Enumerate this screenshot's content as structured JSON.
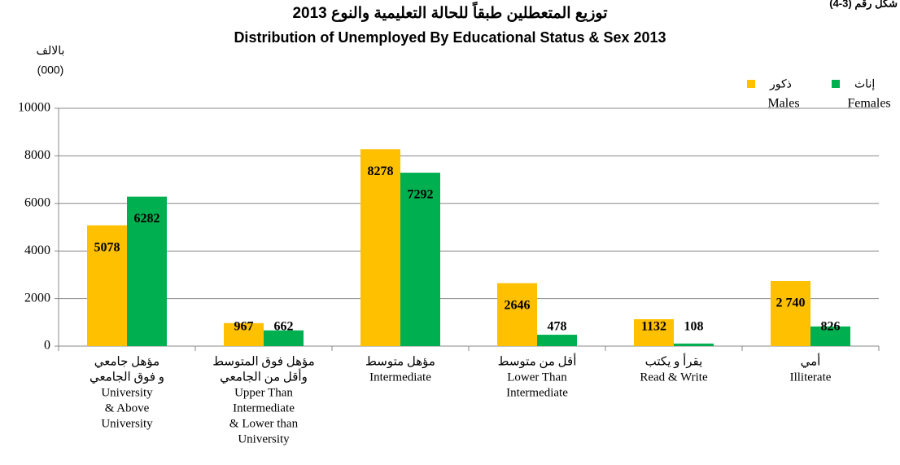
{
  "chart_data": {
    "type": "bar",
    "figure_label": "شكل رقم (3-4)",
    "title": "توزيع المتعطلين طبقاً للحالة التعليمية والنوع 2013",
    "subtitle": "Distribution of Unemployed By Educational Status & Sex 2013",
    "unit_label": [
      "بالالف",
      "(000)"
    ],
    "categories": [
      [
        "مؤهل جامعي",
        "و فوق الجامعي",
        "University",
        "& Above",
        "University"
      ],
      [
        "مؤهل فوق المتوسط",
        "وأقل من الجامعي",
        "Upper Than",
        "Intermediate",
        "& Lower than",
        "University"
      ],
      [
        "مؤهل متوسط",
        "Intermediate"
      ],
      [
        "أقل من متوسط",
        "Lower Than",
        "Intermediate"
      ],
      [
        "يقرأ و يكتب",
        "Read & Write"
      ],
      [
        "أمي",
        "Illiterate"
      ]
    ],
    "series": [
      {
        "name": "ذكور",
        "name_en": "Males",
        "color": "#FFC000",
        "values": [
          5078,
          967,
          8278,
          2646,
          1132,
          2740
        ],
        "value_labels": [
          "5078",
          "967",
          "8278",
          "2646",
          "1132",
          "2 740"
        ]
      },
      {
        "name": "إناث",
        "name_en": "Females",
        "color": "#00B050",
        "values": [
          6282,
          662,
          7292,
          478,
          108,
          826
        ]
      }
    ],
    "ylim": [
      0,
      10000
    ],
    "yticks": [
      0,
      2000,
      4000,
      6000,
      8000,
      10000
    ],
    "grid": true
  }
}
